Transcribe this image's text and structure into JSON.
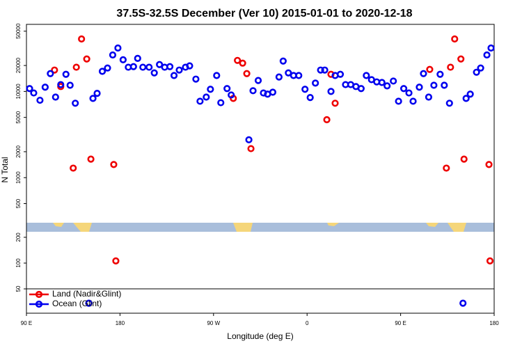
{
  "chart_data": {
    "type": "scatter",
    "title": "37.5S-32.5S December (Ver 10)   2015-01-01 to 2020-12-18",
    "xlabel": "Longitude (deg E)",
    "ylabel": "N Total",
    "log_y": true,
    "xlim": [
      90,
      540
    ],
    "xticks": [
      {
        "value": 90,
        "label": "90 E"
      },
      180,
      {
        "value": 270,
        "label": "90 W"
      },
      {
        "value": 360,
        "label": "0"
      },
      {
        "value": 450,
        "label": "90 E"
      },
      {
        "value": 540,
        "label": "180"
      }
    ],
    "panels": [
      {
        "ylim": [
          300,
          60000
        ],
        "yticks": [
          500,
          1000,
          2000,
          5000,
          10000,
          20000,
          50000
        ]
      },
      {
        "ylim": [
          26,
          232
        ],
        "yticks": [
          50,
          100,
          200
        ]
      }
    ],
    "legend": "bottom-left",
    "series": [
      {
        "name": "Land (Nadir&Glint)",
        "color": "#ee0000",
        "x": [
          117,
          123,
          135,
          138,
          143,
          148,
          152,
          174,
          176,
          289,
          293,
          298,
          302,
          306,
          379,
          383,
          387,
          478,
          494,
          498,
          502,
          508,
          511,
          535,
          536
        ],
        "values": [
          17700,
          11400,
          1290,
          19100,
          40600,
          23800,
          1640,
          1420,
          106,
          8300,
          22900,
          21300,
          16100,
          2170,
          4700,
          15800,
          7300,
          18000,
          1290,
          19100,
          40600,
          23800,
          1640,
          1420,
          106
        ]
      },
      {
        "name": "Ocean (Glint)",
        "color": "#0000ee",
        "x": [
          93,
          97,
          103,
          108,
          113,
          118,
          123,
          128,
          132,
          137,
          154,
          158,
          163,
          168,
          173,
          178,
          183,
          188,
          193,
          197,
          202,
          208,
          213,
          218,
          223,
          228,
          232,
          237,
          243,
          247,
          253,
          257,
          263,
          267,
          273,
          277,
          283,
          287,
          304,
          308,
          313,
          318,
          322,
          327,
          333,
          337,
          342,
          347,
          352,
          358,
          363,
          368,
          373,
          377,
          383,
          387,
          392,
          397,
          402,
          407,
          412,
          417,
          422,
          427,
          432,
          437,
          443,
          448,
          453,
          458,
          462,
          468,
          472,
          477,
          482,
          488,
          492,
          497,
          513,
          517,
          523,
          527,
          533,
          537,
          150,
          510
        ],
        "values": [
          10800,
          9600,
          7900,
          11200,
          16100,
          8600,
          12000,
          15800,
          11800,
          7300,
          8300,
          9500,
          17100,
          18700,
          26500,
          31900,
          23300,
          19100,
          19400,
          24200,
          19100,
          19100,
          16400,
          20500,
          19100,
          19400,
          15300,
          17700,
          19100,
          19800,
          13900,
          7700,
          8600,
          10600,
          15300,
          7400,
          10800,
          9100,
          2750,
          10200,
          13400,
          9600,
          9300,
          9800,
          14700,
          22500,
          16400,
          15300,
          15300,
          10600,
          8500,
          12500,
          17700,
          17700,
          10000,
          15300,
          15800,
          12000,
          12000,
          11400,
          10800,
          15300,
          13700,
          12900,
          12700,
          11600,
          13200,
          7700,
          10800,
          9600,
          7700,
          11200,
          16100,
          8600,
          11800,
          15800,
          11800,
          7300,
          8300,
          9300,
          16700,
          18700,
          26500,
          31900,
          34,
          34
        ]
      }
    ]
  }
}
